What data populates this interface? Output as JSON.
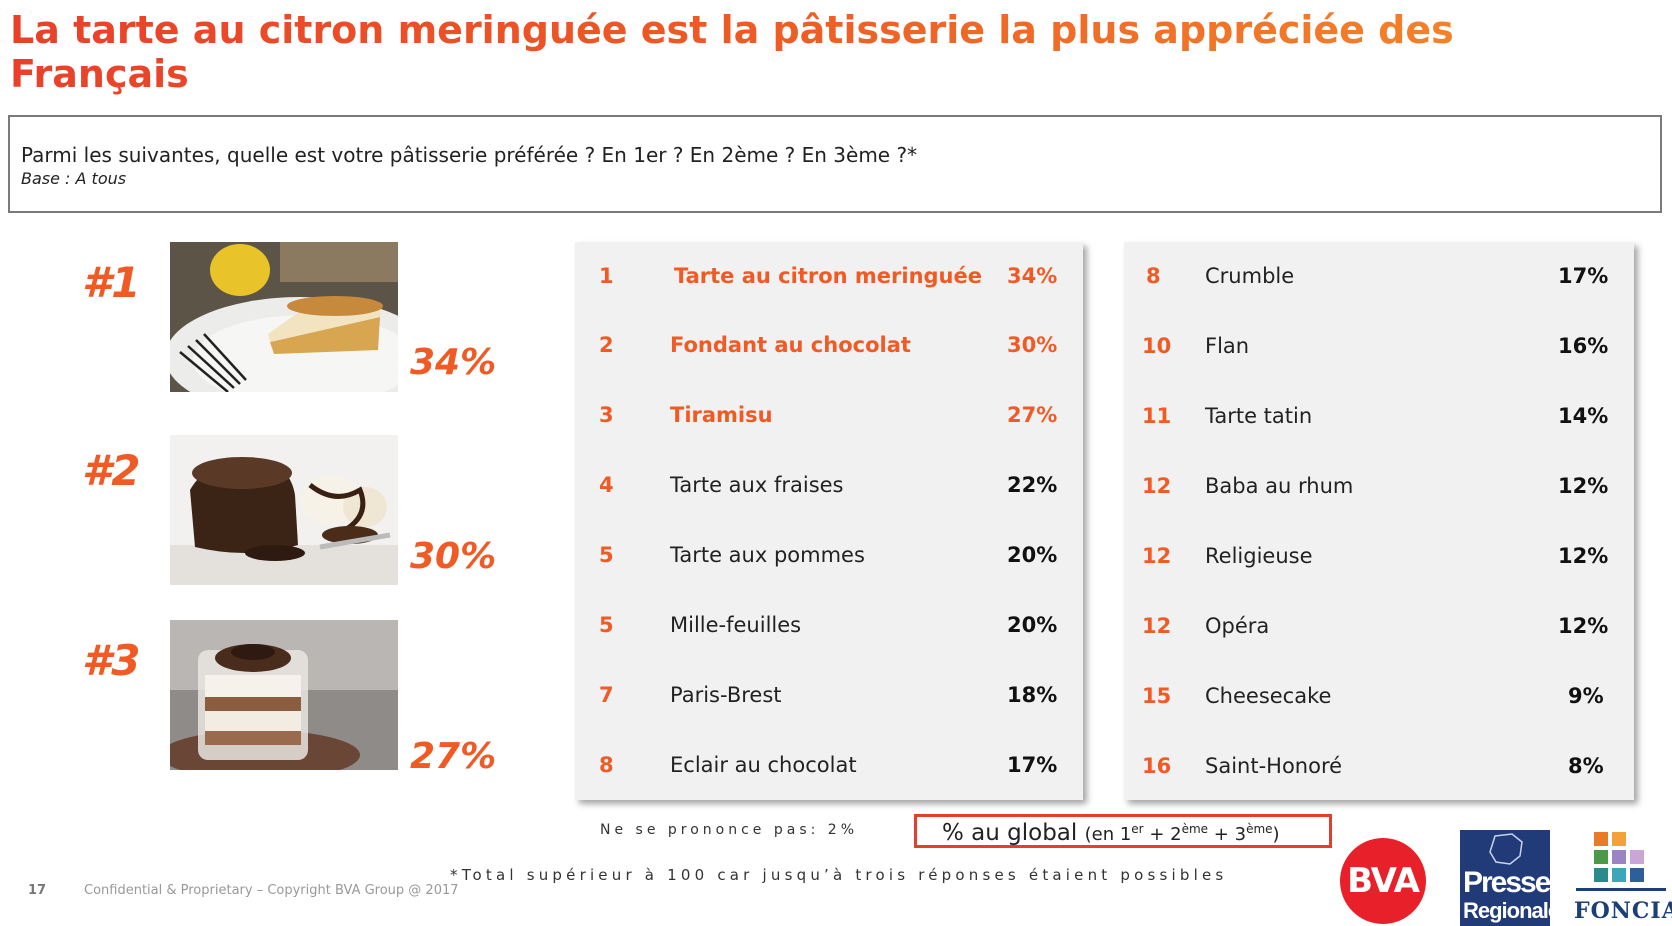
{
  "title": "La tarte au citron meringuée est la pâtisserie la plus appréciée des Français",
  "question": "Parmi les suivantes, quelle est votre pâtisserie préférée ? En 1er ? En 2ème ? En 3ème ?*",
  "base": "Base : A tous",
  "podium": [
    {
      "label": "#1",
      "pct": "34%",
      "photo": "lemon-meringue-tart-photo"
    },
    {
      "label": "#2",
      "pct": "30%",
      "photo": "chocolate-fondant-photo"
    },
    {
      "label": "#3",
      "pct": "27%",
      "photo": "tiramisu-photo"
    }
  ],
  "ranking_left": [
    {
      "rank": "1",
      "name": "Tarte au citron meringuée",
      "pct": "34%"
    },
    {
      "rank": "2",
      "name": "Fondant au chocolat",
      "pct": "30%"
    },
    {
      "rank": "3",
      "name": "Tiramisu",
      "pct": "27%"
    },
    {
      "rank": "4",
      "name": "Tarte aux fraises",
      "pct": "22%"
    },
    {
      "rank": "5",
      "name": "Tarte aux pommes",
      "pct": "20%"
    },
    {
      "rank": "5",
      "name": "Mille-feuilles",
      "pct": "20%"
    },
    {
      "rank": "7",
      "name": "Paris-Brest",
      "pct": "18%"
    },
    {
      "rank": "8",
      "name": "Eclair au chocolat",
      "pct": "17%"
    }
  ],
  "ranking_right": [
    {
      "rank": "8",
      "name": "Crumble",
      "pct": "17%"
    },
    {
      "rank": "10",
      "name": "Flan",
      "pct": "16%"
    },
    {
      "rank": "11",
      "name": "Tarte tatin",
      "pct": "14%"
    },
    {
      "rank": "12",
      "name": "Baba au rhum",
      "pct": "12%"
    },
    {
      "rank": "12",
      "name": "Religieuse",
      "pct": "12%"
    },
    {
      "rank": "12",
      "name": "Opéra",
      "pct": "12%"
    },
    {
      "rank": "15",
      "name": "Cheesecake",
      "pct": "9%"
    },
    {
      "rank": "16",
      "name": "Saint-Honoré",
      "pct": "8%"
    }
  ],
  "no_opinion": "Ne se prononce pas: 2%",
  "global_box": {
    "main": "% au global",
    "open": "(en 1",
    "sup1": "er",
    "plus1": " + 2",
    "sup2": "ème",
    "plus2": " + 3",
    "sup3": "ème",
    "close": ")"
  },
  "total_note": "*Total supérieur à 100 car jusqu’à trois réponses étaient possibles",
  "page_number": "17",
  "footer": "Confidential & Proprietary – Copyright BVA Group @ 2017",
  "logos": {
    "bva": "BVA",
    "presse_line1": "Presse",
    "presse_line2": "Regionale",
    "foncia": "FONCIA"
  },
  "colors": {
    "accent": "#f05a24",
    "box_border": "#e2402b",
    "panel_bg": "#f1f1f1"
  }
}
